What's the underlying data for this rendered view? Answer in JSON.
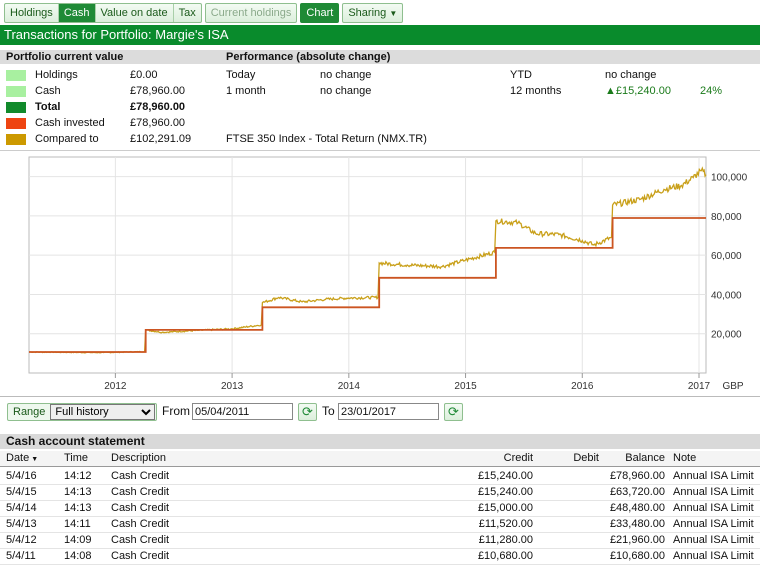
{
  "toolbar": {
    "tabs": [
      {
        "label": "Holdings",
        "active": false
      },
      {
        "label": "Cash",
        "active": true
      },
      {
        "label": "Value on date",
        "active": false
      },
      {
        "label": "Tax",
        "active": false
      }
    ],
    "current_holdings_label": "Current holdings",
    "chart_label": "Chart",
    "sharing_label": "Sharing"
  },
  "title": "Transactions for Portfolio: Margie's ISA",
  "summary": {
    "value_heading": "Portfolio current value",
    "performance_heading": "Performance (absolute change)",
    "rows": [
      {
        "label": "Holdings",
        "value": "£0.00",
        "p1": "Today",
        "p1v": "no change",
        "p2": "YTD",
        "p2v": "no change",
        "pct": ""
      },
      {
        "label": "Cash",
        "value": "£78,960.00",
        "p1": "1 month",
        "p1v": "no change",
        "p2": "12 months",
        "p2v": "▲£15,240.00",
        "pct": "24%"
      },
      {
        "label": "Total",
        "value": "£78,960.00",
        "p1": "",
        "p1v": "",
        "p2": "",
        "p2v": "",
        "pct": ""
      },
      {
        "label": "Cash invested",
        "value": "£78,960.00",
        "p1": "",
        "p1v": "",
        "p2": "",
        "p2v": "",
        "pct": ""
      },
      {
        "label": "Compared to",
        "value": "£102,291.09",
        "p1": "FTSE 350 Index - Total Return (NMX.TR)",
        "p1v": "",
        "p2": "",
        "p2v": "",
        "pct": ""
      }
    ],
    "swatch_colors": [
      "#a8f0a0",
      "#a8f0a0",
      "#118a2b",
      "#ee4411",
      "#cc9900"
    ]
  },
  "chart_data": {
    "type": "line",
    "x_ticks": [
      "2012",
      "2013",
      "2014",
      "2015",
      "2016",
      "2017"
    ],
    "y_ticks": [
      "20,000",
      "40,000",
      "60,000",
      "80,000",
      "100,000"
    ],
    "y_unit": "GBP",
    "ylim": [
      0,
      110000
    ],
    "xlim": [
      2011.26,
      2017.06
    ],
    "series": [
      {
        "color": "#cc5522",
        "step": true,
        "points": [
          [
            2011.26,
            10680
          ],
          [
            2012.26,
            21960
          ],
          [
            2013.26,
            33480
          ],
          [
            2014.26,
            48480
          ],
          [
            2015.26,
            63720
          ],
          [
            2016.26,
            78960
          ],
          [
            2017.06,
            78960
          ]
        ]
      },
      {
        "color": "#c9a01a",
        "step": false,
        "points": [
          [
            2011.26,
            10680
          ],
          [
            2011.6,
            10500
          ],
          [
            2011.9,
            10400
          ],
          [
            2012.25,
            10900
          ],
          [
            2012.26,
            21960
          ],
          [
            2012.4,
            20700
          ],
          [
            2012.7,
            21700
          ],
          [
            2013.0,
            22500
          ],
          [
            2013.25,
            24500
          ],
          [
            2013.26,
            35800
          ],
          [
            2013.4,
            38500
          ],
          [
            2013.6,
            36200
          ],
          [
            2013.8,
            37500
          ],
          [
            2014.0,
            38200
          ],
          [
            2014.25,
            38500
          ],
          [
            2014.26,
            56000
          ],
          [
            2014.5,
            55000
          ],
          [
            2014.8,
            54200
          ],
          [
            2015.0,
            57500
          ],
          [
            2015.25,
            61500
          ],
          [
            2015.26,
            77500
          ],
          [
            2015.45,
            76500
          ],
          [
            2015.6,
            71000
          ],
          [
            2015.8,
            70500
          ],
          [
            2016.0,
            67500
          ],
          [
            2016.1,
            65200
          ],
          [
            2016.25,
            69000
          ],
          [
            2016.26,
            85500
          ],
          [
            2016.5,
            88500
          ],
          [
            2016.7,
            93500
          ],
          [
            2016.85,
            95500
          ],
          [
            2016.95,
            99500
          ],
          [
            2017.02,
            103000
          ],
          [
            2017.06,
            101000
          ]
        ]
      }
    ]
  },
  "controls": {
    "range_label": "Range",
    "range_value": "Full history",
    "range_options": [
      "Full history"
    ],
    "from_label": "From",
    "from_value": "05/04/2011",
    "to_label": "To",
    "to_value": "23/01/2017"
  },
  "statement": {
    "title": "Cash account statement",
    "columns": {
      "date": "Date",
      "time": "Time",
      "description": "Description",
      "credit": "Credit",
      "debit": "Debit",
      "balance": "Balance",
      "note": "Note"
    },
    "rows": [
      {
        "date": "5/4/16",
        "time": "14:12",
        "description": "Cash Credit",
        "credit": "£15,240.00",
        "debit": "",
        "balance": "£78,960.00",
        "note": "Annual ISA Limit"
      },
      {
        "date": "5/4/15",
        "time": "14:13",
        "description": "Cash Credit",
        "credit": "£15,240.00",
        "debit": "",
        "balance": "£63,720.00",
        "note": "Annual ISA Limit"
      },
      {
        "date": "5/4/14",
        "time": "14:13",
        "description": "Cash Credit",
        "credit": "£15,000.00",
        "debit": "",
        "balance": "£48,480.00",
        "note": "Annual ISA Limit"
      },
      {
        "date": "5/4/13",
        "time": "14:11",
        "description": "Cash Credit",
        "credit": "£11,520.00",
        "debit": "",
        "balance": "£33,480.00",
        "note": "Annual ISA Limit"
      },
      {
        "date": "5/4/12",
        "time": "14:09",
        "description": "Cash Credit",
        "credit": "£11,280.00",
        "debit": "",
        "balance": "£21,960.00",
        "note": "Annual ISA Limit"
      },
      {
        "date": "5/4/11",
        "time": "14:08",
        "description": "Cash Credit",
        "credit": "£10,680.00",
        "debit": "",
        "balance": "£10,680.00",
        "note": "Annual ISA Limit"
      }
    ]
  }
}
